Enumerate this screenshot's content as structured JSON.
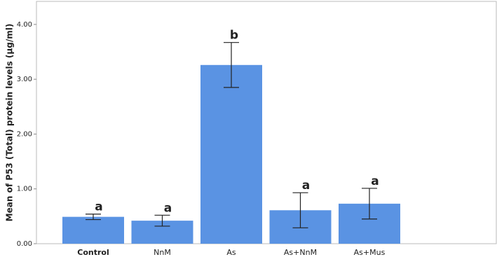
{
  "chart_data": {
    "type": "bar",
    "y_label": "Mean of P53 (Total) protein levels (µg/ml)",
    "categories": [
      "Control",
      "NnM",
      "As",
      "As+NnM",
      "As+Mus"
    ],
    "values": [
      0.49,
      0.42,
      3.26,
      0.61,
      0.73
    ],
    "errors": [
      0.05,
      0.1,
      0.41,
      0.32,
      0.28
    ],
    "annotations": [
      "a",
      "a",
      "b",
      "a",
      "a"
    ],
    "color": "#5a93e3",
    "ylim": [
      0,
      4.42
    ],
    "yticks": [
      {
        "value": 0,
        "label": "0.00"
      },
      {
        "value": 1,
        "label": "1.00"
      },
      {
        "value": 2,
        "label": "2.00"
      },
      {
        "value": 3,
        "label": "3.00"
      },
      {
        "value": 4,
        "label": "4.00"
      }
    ],
    "grid": false
  }
}
